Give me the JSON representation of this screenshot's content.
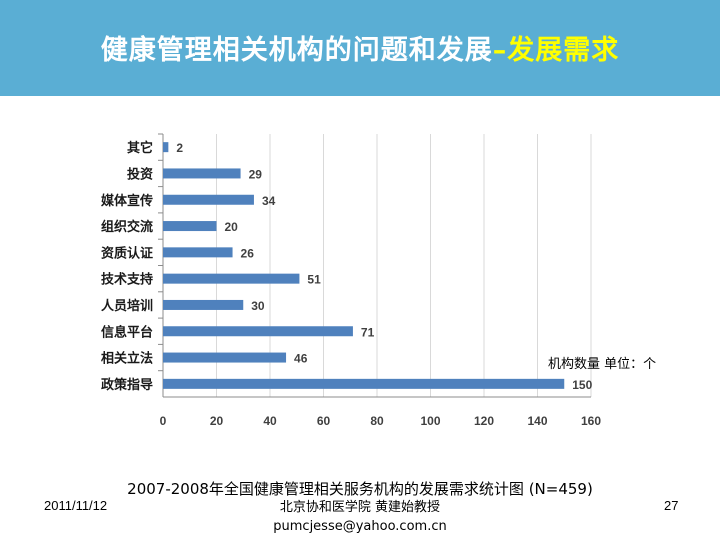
{
  "slide": {
    "title_main": "健康管理相关机构的问题和发展",
    "title_accent": "–发展需求",
    "unit_note": "机构数量 单位：个",
    "caption": "2007-2008年全国健康管理相关服务机构的发展需求统计图 (N=459)",
    "footer": {
      "date": "2011/11/12",
      "author": "北京协和医学院 黄建始教授",
      "email": "pumcjesse@yahoo.com.cn",
      "page": "27"
    }
  },
  "colors": {
    "header_bg": "#5aaed4",
    "title_accent": "#ffff00",
    "bar": "#4f81bd",
    "grid": "#d9d9d9"
  },
  "chart_data": {
    "type": "bar",
    "orientation": "horizontal",
    "categories": [
      "其它",
      "投资",
      "媒体宣传",
      "组织交流",
      "资质认证",
      "技术支持",
      "人员培训",
      "信息平台",
      "相关立法",
      "政策指导"
    ],
    "values": [
      2,
      29,
      34,
      20,
      26,
      51,
      30,
      71,
      46,
      150
    ],
    "xlim": [
      0,
      160
    ],
    "xticks": [
      0,
      20,
      40,
      60,
      80,
      100,
      120,
      140,
      160
    ],
    "data_labels": true,
    "grid": "vertical",
    "legend": "none",
    "title": "",
    "xlabel": "",
    "ylabel": ""
  }
}
